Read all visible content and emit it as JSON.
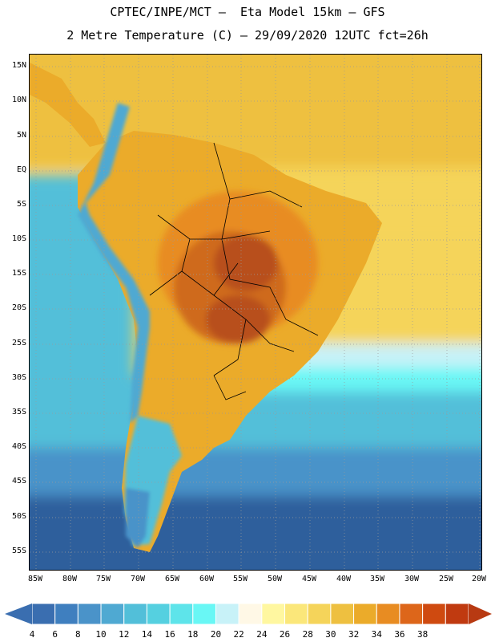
{
  "header": {
    "line1": "CPTEC/INPE/MCT –  Eta Model 15km – GFS",
    "line2": "2 Metre Temperature (C) – 29/09/2020 12UTC fct=26h"
  },
  "axes": {
    "lat_labels": [
      "15N",
      "10N",
      "5N",
      "EQ",
      "5S",
      "10S",
      "15S",
      "20S",
      "25S",
      "30S",
      "35S",
      "40S",
      "45S",
      "50S",
      "55S"
    ],
    "lon_labels": [
      "85W",
      "80W",
      "75W",
      "70W",
      "65W",
      "60W",
      "55W",
      "50W",
      "45W",
      "40W",
      "35W",
      "30W",
      "25W",
      "20W"
    ]
  },
  "colorbar": {
    "labels": [
      "4",
      "6",
      "8",
      "10",
      "12",
      "14",
      "16",
      "18",
      "20",
      "22",
      "24",
      "26",
      "28",
      "30",
      "32",
      "34",
      "36",
      "38"
    ],
    "colors": [
      "#3a6eb0",
      "#3f7fbf",
      "#4a93c9",
      "#4fa9d2",
      "#52bfd9",
      "#55d0e0",
      "#5ee4ea",
      "#69f7f5",
      "#c8f2f8",
      "#fff8e6",
      "#fff7a0",
      "#fbe77a",
      "#f5d45a",
      "#eec040",
      "#ebab2a",
      "#e88c22",
      "#dd661a",
      "#cf4a10",
      "#c03a10"
    ],
    "low_arrow_color": "#3a6eb0",
    "high_arrow_color": "#b83a12"
  },
  "palette": {
    "ocean_cold": "#2f5f9c",
    "ocean_cool": "#4a93c9",
    "ocean_mild": "#52bfd9",
    "ocean_warm": "#69f7f5",
    "ocean_pale": "#c8f2f8",
    "ocean_tropic": "#f5d45a",
    "ocean_hot": "#eec040",
    "land_warm": "#ebab2a",
    "land_hot": "#e88c22",
    "land_veryhot": "#cf6a1c",
    "land_max": "#b8501a",
    "andes_cold": "#4fa9d2",
    "patagonia": "#52bfd9",
    "border": "#000000"
  }
}
